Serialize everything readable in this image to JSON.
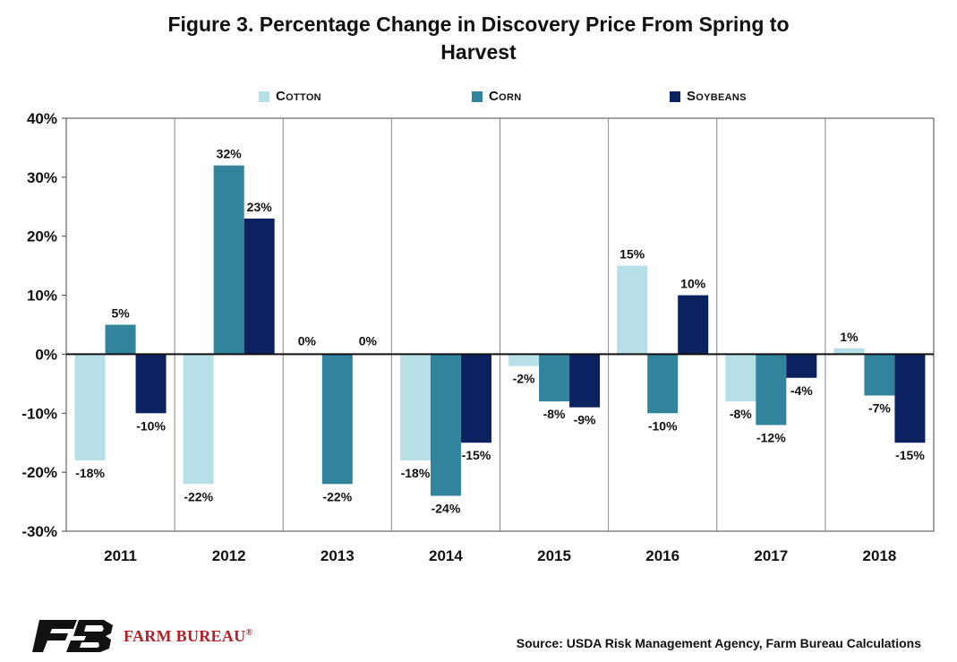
{
  "title_line1": "Figure 3. Percentage Change in Discovery Price From Spring to",
  "title_line2": "Harvest",
  "source": "Source: USDA Risk Management Agency, Farm Bureau Calculations",
  "logo": {
    "name": "farm-bureau-logo",
    "text": "FARM BUREAU",
    "mark": "®"
  },
  "colors": {
    "cotton": "#b7dfe8",
    "corn": "#31849b",
    "soybeans": "#0c2260",
    "logo_red": "#b3202a"
  },
  "chart_data": {
    "type": "bar",
    "categories": [
      "2011",
      "2012",
      "2013",
      "2014",
      "2015",
      "2016",
      "2017",
      "2018"
    ],
    "series": [
      {
        "name": "Cotton",
        "values": [
          -18,
          -22,
          0,
          -18,
          -2,
          15,
          -8,
          1
        ],
        "labels": [
          "-18%",
          "-22%",
          "0%",
          "-18%",
          "-2%",
          "15%",
          "-8%",
          "1%"
        ]
      },
      {
        "name": "Corn",
        "values": [
          5,
          32,
          -22,
          -24,
          -8,
          -10,
          -12,
          -7
        ],
        "labels": [
          "5%",
          "32%",
          "-22%",
          "-24%",
          "-8%",
          "-10%",
          "-12%",
          "-7%"
        ]
      },
      {
        "name": "Soybeans",
        "values": [
          -10,
          23,
          0,
          -15,
          -9,
          10,
          -4,
          -15
        ],
        "labels": [
          "-10%",
          "23%",
          "0%",
          "-15%",
          "-9%",
          "10%",
          "-4%",
          "-15%"
        ]
      }
    ],
    "ylim": [
      -30,
      40
    ],
    "yticks": [
      "40%",
      "30%",
      "20%",
      "10%",
      "0%",
      "-10%",
      "-20%",
      "-30%"
    ],
    "ytick_values": [
      40,
      30,
      20,
      10,
      0,
      -10,
      -20,
      -30
    ],
    "legend_position": "top",
    "grid": false
  }
}
